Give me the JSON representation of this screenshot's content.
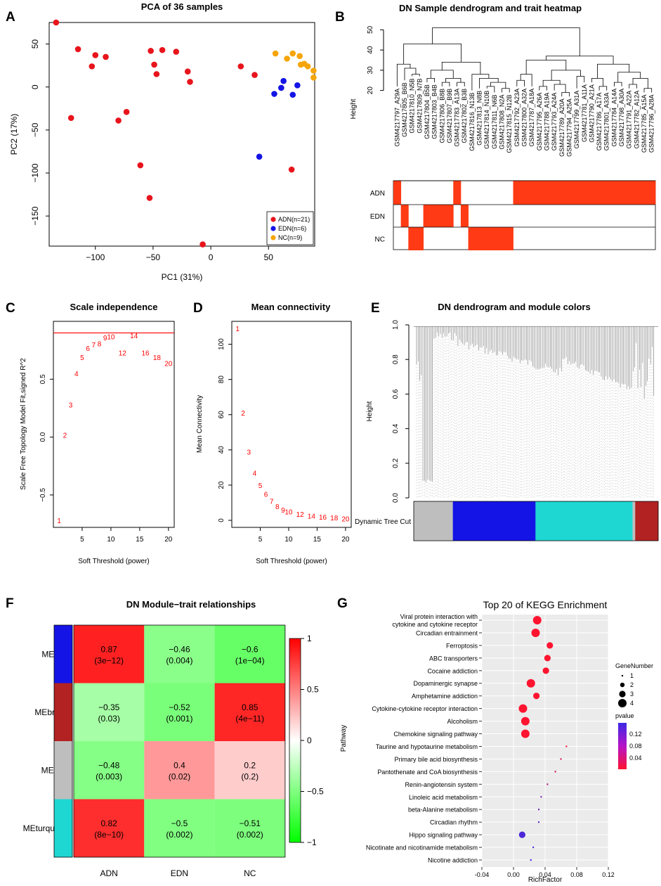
{
  "colors": {
    "red": "#e8141c",
    "blue": "#1414e6",
    "orange": "#f5a50a",
    "heatRed": "#ff3a14",
    "turquoise": "#1ed7d2",
    "grey": "#bebebe",
    "brown": "#b22222"
  },
  "panel_labels": [
    "A",
    "B",
    "C",
    "D",
    "E",
    "F",
    "G"
  ],
  "chart_data": [
    {
      "id": "A",
      "type": "scatter",
      "title": "PCA of 36  samples",
      "xlabel": "PC1 (31%)",
      "ylabel": "PC2 (17%)",
      "xlim": [
        -140,
        90
      ],
      "ylim": [
        -185,
        75
      ],
      "xticks": [
        -100,
        -50,
        0,
        50
      ],
      "yticks": [
        -150,
        -100,
        -50,
        0,
        50
      ],
      "legend": [
        "ADN(n=21)",
        "EDN(n=6)",
        "NC(n=9)"
      ],
      "series": [
        {
          "name": "ADN",
          "color": "red",
          "points": [
            [
              -134,
              75
            ],
            [
              -115,
              44
            ],
            [
              -103,
              24
            ],
            [
              -100,
              37
            ],
            [
              -91,
              35
            ],
            [
              -121,
              -36
            ],
            [
              -80,
              -39
            ],
            [
              -73,
              -29
            ],
            [
              -61,
              -91
            ],
            [
              -53,
              -129
            ],
            [
              -52,
              42
            ],
            [
              -49,
              26
            ],
            [
              -47,
              15
            ],
            [
              -42,
              43
            ],
            [
              -30,
              41
            ],
            [
              -20,
              18
            ],
            [
              -18,
              6
            ],
            [
              -7,
              -183
            ],
            [
              26,
              24
            ],
            [
              38,
              14
            ],
            [
              70,
              -96
            ]
          ]
        },
        {
          "name": "EDN",
          "color": "blue",
          "points": [
            [
              42,
              -81
            ],
            [
              55,
              -8
            ],
            [
              61,
              -1
            ],
            [
              63,
              7
            ],
            [
              71,
              -9
            ],
            [
              75,
              2
            ]
          ]
        },
        {
          "name": "NC",
          "color": "orange",
          "points": [
            [
              56,
              39
            ],
            [
              66,
              33
            ],
            [
              71,
              39
            ],
            [
              77,
              36
            ],
            [
              81,
              27
            ],
            [
              84,
              24
            ],
            [
              89,
              19
            ],
            [
              89,
              11
            ],
            [
              78,
              26
            ]
          ]
        }
      ]
    },
    {
      "id": "B",
      "type": "dendrogram",
      "title": "DN Sample dendrogram and trait heatmap",
      "ylabel": "Height",
      "yticks": [
        20,
        30,
        40,
        50
      ],
      "samples": [
        "GSM4217797_A29A",
        "GSM4217805_B6B",
        "GSM4217810_N5B",
        "GSM4217809_N7B",
        "GSM4217804_B5B",
        "GSM4217803_B4B",
        "GSM4217806_B8B",
        "GSM4217807_B9B",
        "GSM4217783_A13A",
        "GSM4217802_B3B",
        "GSM4217816_N13B",
        "GSM4217813_N8B",
        "GSM4217814_N10B",
        "GSM4217811_N6B",
        "GSM4217808_N2A",
        "GSM4217815_N12B",
        "GSM4217792_A23A",
        "GSM4217800_A32A",
        "GSM4217787_A18A",
        "GSM4217795_A26A",
        "GSM4217788_A19A",
        "GSM4217793_A24A",
        "GSM4217789_A20A",
        "GSM4217794_A25A",
        "GSM4217799_A31A",
        "GSM4217781_A11A",
        "GSM4217790_A21A",
        "GSM4217786_A17A",
        "GSM4217801_A33A",
        "GSM4217784_A14A",
        "GSM4217798_A30A",
        "GSM4217791_A22A",
        "GSM4217782_A12A",
        "GSM4217785_A15A",
        "GSM4217796_A28A"
      ],
      "traits": [
        "ADN",
        "EDN",
        "NC"
      ],
      "trait_values": {
        "ADN": [
          1,
          0,
          0,
          0,
          0,
          0,
          0,
          0,
          1,
          0,
          0,
          0,
          0,
          0,
          0,
          0,
          1,
          1,
          1,
          1,
          1,
          1,
          1,
          1,
          1,
          1,
          1,
          1,
          1,
          1,
          1,
          1,
          1,
          1,
          1
        ],
        "EDN": [
          0,
          1,
          0,
          0,
          1,
          1,
          1,
          1,
          0,
          1,
          0,
          0,
          0,
          0,
          0,
          0,
          0,
          0,
          0,
          0,
          0,
          0,
          0,
          0,
          0,
          0,
          0,
          0,
          0,
          0,
          0,
          0,
          0,
          0,
          0
        ],
        "NC": [
          0,
          0,
          1,
          1,
          0,
          0,
          0,
          0,
          0,
          0,
          1,
          1,
          1,
          1,
          1,
          1,
          0,
          0,
          0,
          0,
          0,
          0,
          0,
          0,
          0,
          0,
          0,
          0,
          0,
          0,
          0,
          0,
          0,
          0,
          0
        ]
      }
    },
    {
      "id": "C",
      "type": "scatter",
      "title": "Scale independence",
      "xlabel": "Soft Threshold (power)",
      "ylabel": "Scale Free Topology Model Fit,signed R^2",
      "xlim": [
        0,
        21
      ],
      "ylim": [
        -0.78,
        1.0
      ],
      "xticks": [
        5,
        10,
        15,
        20
      ],
      "yticks": [
        -0.5,
        0.0,
        0.5
      ],
      "threshold_line": 0.9,
      "x": [
        1,
        2,
        3,
        4,
        5,
        6,
        7,
        8,
        9,
        10,
        12,
        14,
        16,
        18,
        20
      ],
      "y": [
        -0.72,
        0.02,
        0.28,
        0.55,
        0.69,
        0.77,
        0.8,
        0.81,
        0.86,
        0.87,
        0.73,
        0.88,
        0.73,
        0.69,
        0.64
      ]
    },
    {
      "id": "D",
      "type": "scatter",
      "title": "Mean connectivity",
      "xlabel": "Soft Threshold (power)",
      "ylabel": "Mean Connectivity",
      "xlim": [
        0,
        21
      ],
      "ylim": [
        -4,
        113
      ],
      "xticks": [
        5,
        10,
        15,
        20
      ],
      "yticks": [
        0,
        20,
        40,
        60,
        80,
        100
      ],
      "x": [
        1,
        2,
        3,
        4,
        5,
        6,
        7,
        8,
        9,
        10,
        12,
        14,
        16,
        18,
        20
      ],
      "y": [
        109,
        61,
        39,
        27,
        20,
        15,
        11,
        8,
        6,
        5,
        3.5,
        2.5,
        2,
        1.5,
        1
      ]
    },
    {
      "id": "E",
      "type": "dendrogram",
      "title": "DN dendrogram and module colors",
      "ylabel": "Height",
      "yticks": [
        0.0,
        0.2,
        0.4,
        0.6,
        0.8,
        1.0
      ],
      "color_row_label": "Dynamic Tree Cut",
      "modules": [
        {
          "color": "grey",
          "fraction": 0.16
        },
        {
          "color": "blue",
          "fraction": 0.338
        },
        {
          "color": "turquoise",
          "fraction": 0.397
        },
        {
          "color": "grey",
          "fraction": 0.011
        },
        {
          "color": "brown",
          "fraction": 0.094
        }
      ]
    },
    {
      "id": "F",
      "type": "heatmap",
      "title": "DN Module−trait relationships",
      "columns": [
        "ADN",
        "EDN",
        "NC"
      ],
      "rows": [
        "MEblue",
        "MEbrown",
        "MEgrey",
        "MEturquoise"
      ],
      "row_colors": [
        "blue",
        "brown",
        "grey",
        "turquoise"
      ],
      "values": [
        [
          0.87,
          -0.46,
          -0.6
        ],
        [
          -0.35,
          -0.52,
          0.85
        ],
        [
          -0.48,
          0.4,
          0.2
        ],
        [
          0.82,
          -0.5,
          -0.51
        ]
      ],
      "labels": [
        [
          "0.87",
          "−0.46",
          "−0.6"
        ],
        [
          "−0.35",
          "−0.52",
          "0.85"
        ],
        [
          "−0.48",
          "0.4",
          "0.2"
        ],
        [
          "0.82",
          "−0.5",
          "−0.51"
        ]
      ],
      "pvalues": [
        [
          "(3e−12)",
          "(0.004)",
          "(1e−04)"
        ],
        [
          "(0.03)",
          "(0.001)",
          "(4e−11)"
        ],
        [
          "(0.003)",
          "(0.02)",
          "(0.2)"
        ],
        [
          "(8e−10)",
          "(0.002)",
          "(0.002)"
        ]
      ],
      "colorbar_ticks": [
        1,
        0.5,
        0,
        -0.5,
        -1
      ],
      "colorbar_labels": [
        "1",
        "0.5",
        "0",
        "−0.5",
        "−1"
      ]
    },
    {
      "id": "G",
      "type": "scatter",
      "title": "Top 20 of KEGG Enrichment",
      "xlabel": "RichFactor",
      "ylabel": "Pathway",
      "xlim": [
        -0.04,
        0.12
      ],
      "xticks": [
        -0.04,
        0.0,
        0.04,
        0.08,
        0.12
      ],
      "xticklabels": [
        "-0.04",
        "0.00",
        "0.04",
        "0.08",
        "0.12"
      ],
      "size_legend_title": "GeneNumber",
      "size_legend": [
        1,
        2,
        3,
        4
      ],
      "color_legend_title": "pvalue",
      "color_legend": [
        "0.12",
        "0.08",
        "0.04"
      ],
      "pathways": [
        "Viral protein interaction with\ncytokine and cytokine receptor",
        "Circadian entrainment",
        "Ferroptosis",
        "ABC transporters",
        "Cocaine addiction",
        "Dopaminergic synapse",
        "Amphetamine addiction",
        "Cytokine-cytokine receptor interaction",
        "Alcoholism",
        "Chemokine signaling pathway",
        "Taurine and hypotaurine metabolism",
        "Primary bile acid biosynthesis",
        "Pantothenate and CoA biosynthesis",
        "Renin-angiotensin system",
        "Linoleic acid metabolism",
        "beta-Alanine metabolism",
        "Circadian rhythm",
        "Hippo signaling pathway",
        "Nicotinate and nicotinamide metabolism",
        "Nicotine addiction"
      ],
      "rich_factor": [
        0.03,
        0.028,
        0.046,
        0.043,
        0.041,
        0.022,
        0.029,
        0.012,
        0.015,
        0.015,
        0.067,
        0.06,
        0.053,
        0.043,
        0.035,
        0.032,
        0.032,
        0.011,
        0.025,
        0.022
      ],
      "gene_number": [
        4,
        4,
        3,
        3,
        3,
        4,
        3,
        4,
        4,
        4,
        1,
        1,
        1,
        1,
        1,
        1,
        1,
        3,
        1,
        1
      ],
      "pvalue": [
        0.01,
        0.01,
        0.01,
        0.01,
        0.01,
        0.01,
        0.01,
        0.01,
        0.01,
        0.01,
        0.02,
        0.03,
        0.04,
        0.06,
        0.09,
        0.1,
        0.11,
        0.12,
        0.12,
        0.13
      ]
    }
  ]
}
